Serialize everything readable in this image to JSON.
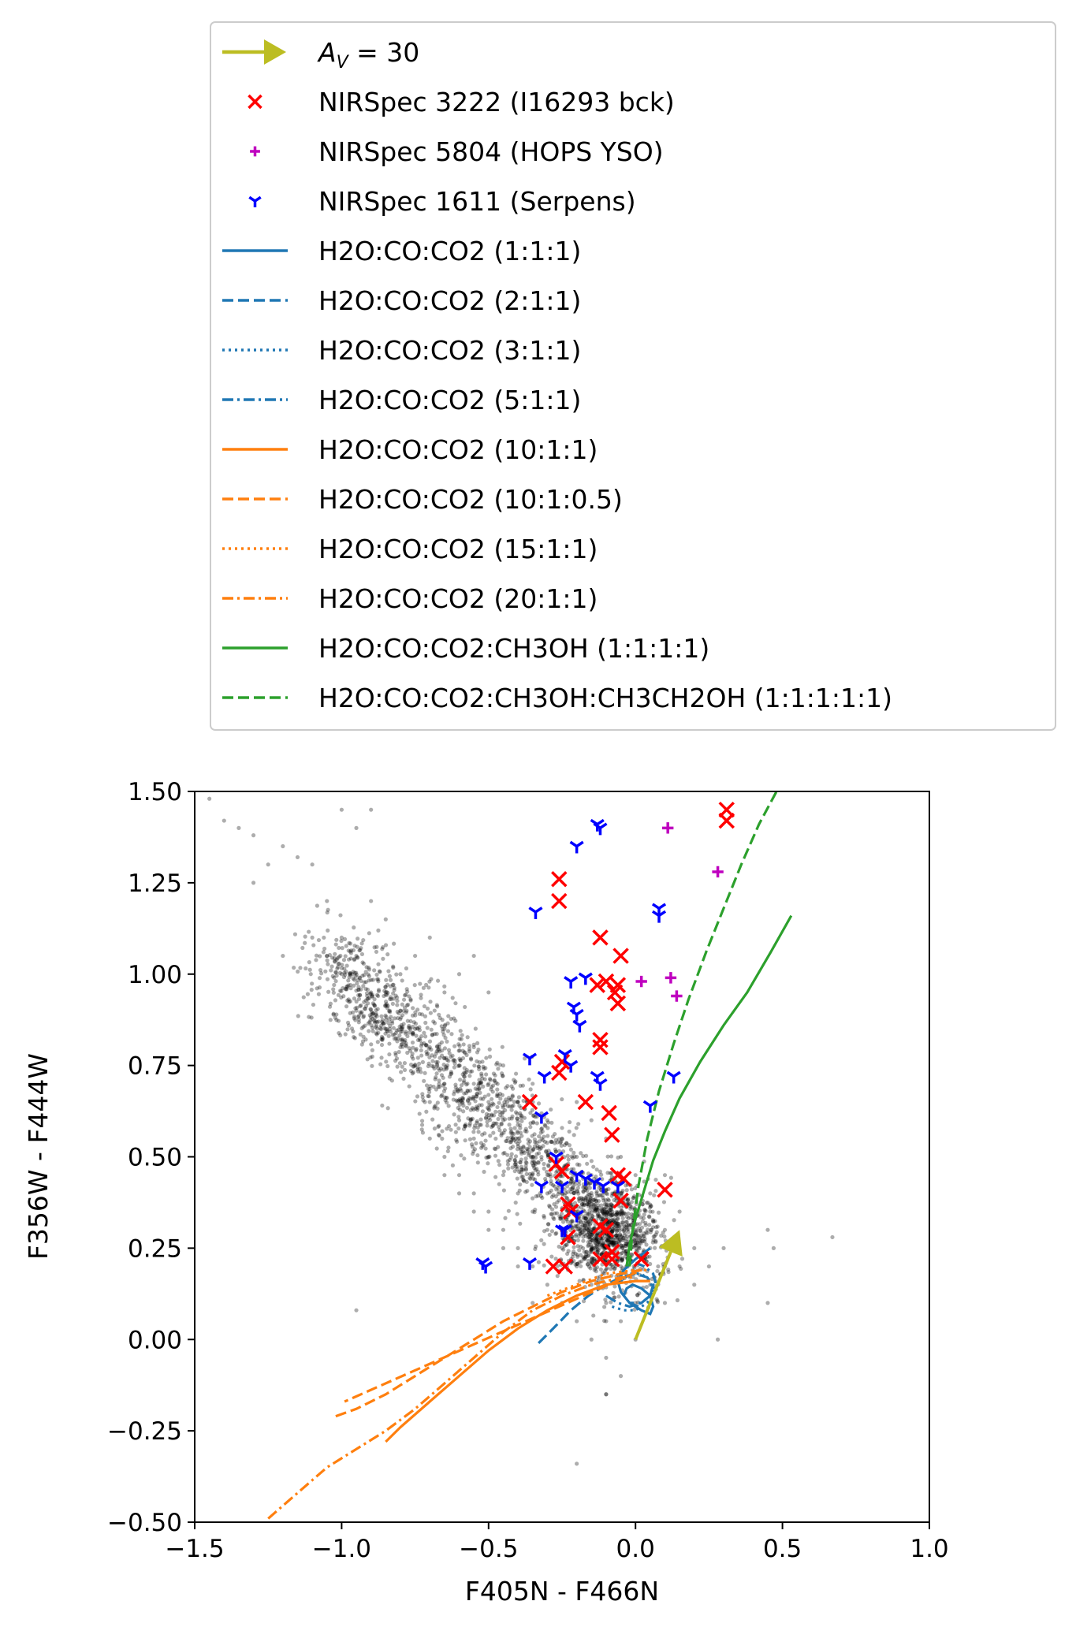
{
  "chart_data": {
    "type": "scatter",
    "xlabel": "F405N - F466N",
    "ylabel": "F356W - F444W",
    "xlim": [
      -1.5,
      1.0
    ],
    "ylim": [
      -0.5,
      1.5
    ],
    "xticks": [
      "−1.5",
      "−1.0",
      "−0.5",
      "0.0",
      "0.5",
      "1.0"
    ],
    "xtick_values": [
      -1.5,
      -1.0,
      -0.5,
      0.0,
      0.5,
      1.0
    ],
    "yticks": [
      "−0.50",
      "−0.25",
      "0.00",
      "0.25",
      "0.50",
      "0.75",
      "1.00",
      "1.25",
      "1.50"
    ],
    "ytick_values": [
      -0.5,
      -0.25,
      0.0,
      0.25,
      0.5,
      0.75,
      1.0,
      1.25,
      1.5
    ],
    "grid": false,
    "legend_position": "above plot",
    "legend": [
      {
        "label_main": "A",
        "label_sub": "V",
        "label_rest": " = 30",
        "kind": "arrow",
        "color": "#bcbd22"
      },
      {
        "label": "NIRSpec 3222 (I16293 bck)",
        "kind": "marker",
        "marker": "x",
        "color": "#ff0000"
      },
      {
        "label": "NIRSpec 5804 (HOPS YSO)",
        "kind": "marker",
        "marker": "plus",
        "color": "#bf00bf"
      },
      {
        "label": "NIRSpec 1611 (Serpens)",
        "kind": "marker",
        "marker": "tri",
        "color": "#0000ff"
      },
      {
        "label": "H2O:CO:CO2 (1:1:1)",
        "kind": "line",
        "color": "#1f77b4",
        "dash": "solid"
      },
      {
        "label": "H2O:CO:CO2 (2:1:1)",
        "kind": "line",
        "color": "#1f77b4",
        "dash": "dashed"
      },
      {
        "label": "H2O:CO:CO2 (3:1:1)",
        "kind": "line",
        "color": "#1f77b4",
        "dash": "dotted"
      },
      {
        "label": "H2O:CO:CO2 (5:1:1)",
        "kind": "line",
        "color": "#1f77b4",
        "dash": "dashdot"
      },
      {
        "label": "H2O:CO:CO2 (10:1:1)",
        "kind": "line",
        "color": "#ff7f0e",
        "dash": "solid"
      },
      {
        "label": "H2O:CO:CO2 (10:1:0.5)",
        "kind": "line",
        "color": "#ff7f0e",
        "dash": "dashed"
      },
      {
        "label": "H2O:CO:CO2 (15:1:1)",
        "kind": "line",
        "color": "#ff7f0e",
        "dash": "dotted"
      },
      {
        "label": "H2O:CO:CO2 (20:1:1)",
        "kind": "line",
        "color": "#ff7f0e",
        "dash": "dashdot"
      },
      {
        "label": "H2O:CO:CO2:CH3OH (1:1:1:1)",
        "kind": "line",
        "color": "#2ca02c",
        "dash": "solid"
      },
      {
        "label": "H2O:CO:CO2:CH3OH:CH3CH2OH (1:1:1:1:1)",
        "kind": "line",
        "color": "#2ca02c",
        "dash": "dashed"
      }
    ],
    "arrow": {
      "from": [
        0.0,
        0.0
      ],
      "to": [
        0.15,
        0.3
      ],
      "color": "#bcbd22"
    },
    "background_cloud": {
      "color": "#000000",
      "description_points": "dense grey scatter, main trend",
      "sample": [
        [
          -1.45,
          1.48
        ],
        [
          -1.4,
          1.42
        ],
        [
          -1.35,
          1.4
        ],
        [
          -1.3,
          1.38
        ],
        [
          -1.25,
          1.3
        ],
        [
          -1.2,
          1.35
        ],
        [
          -1.15,
          1.32
        ],
        [
          -1.1,
          1.3
        ],
        [
          -1.0,
          1.45
        ],
        [
          -0.95,
          1.4
        ],
        [
          -0.9,
          1.45
        ],
        [
          -1.05,
          1.2
        ],
        [
          -1.1,
          1.1
        ],
        [
          -1.2,
          1.05
        ],
        [
          -1.3,
          1.25
        ],
        [
          -1.0,
          1.1
        ],
        [
          -0.9,
          1.2
        ],
        [
          -0.95,
          1.05
        ],
        [
          -0.85,
          1.15
        ],
        [
          -0.8,
          1.0
        ],
        [
          -0.75,
          1.05
        ],
        [
          -0.7,
          1.1
        ],
        [
          -0.65,
          0.95
        ],
        [
          -0.6,
          1.0
        ],
        [
          -0.55,
          1.05
        ],
        [
          -0.5,
          0.95
        ],
        [
          -0.8,
          0.9
        ],
        [
          -0.75,
          0.85
        ],
        [
          -0.7,
          0.8
        ],
        [
          -0.65,
          0.85
        ],
        [
          -0.6,
          0.75
        ],
        [
          -0.55,
          0.8
        ],
        [
          -0.5,
          0.7
        ],
        [
          -0.45,
          0.75
        ],
        [
          -0.4,
          0.65
        ],
        [
          -0.35,
          0.7
        ],
        [
          -0.3,
          0.6
        ],
        [
          -0.25,
          0.55
        ],
        [
          -0.2,
          0.5
        ],
        [
          -0.15,
          0.45
        ],
        [
          -0.1,
          0.4
        ],
        [
          -0.05,
          0.35
        ],
        [
          0.0,
          0.3
        ],
        [
          0.05,
          0.25
        ],
        [
          0.1,
          0.2
        ],
        [
          0.15,
          0.2
        ],
        [
          0.2,
          0.25
        ],
        [
          0.25,
          0.2
        ],
        [
          0.3,
          0.25
        ],
        [
          -0.6,
          0.6
        ],
        [
          -0.55,
          0.55
        ],
        [
          -0.5,
          0.5
        ],
        [
          -0.45,
          0.45
        ],
        [
          -0.4,
          0.4
        ],
        [
          -0.35,
          0.35
        ],
        [
          -0.3,
          0.3
        ],
        [
          -0.25,
          0.25
        ],
        [
          -0.2,
          0.2
        ],
        [
          -0.15,
          0.15
        ],
        [
          -0.1,
          0.1
        ],
        [
          -0.05,
          0.05
        ],
        [
          0.0,
          0.0
        ],
        [
          -0.1,
          -0.05
        ],
        [
          -0.05,
          -0.1
        ],
        [
          -0.1,
          -0.15
        ],
        [
          -0.7,
          0.55
        ],
        [
          -0.65,
          0.5
        ],
        [
          -0.6,
          0.45
        ],
        [
          -0.55,
          0.4
        ],
        [
          -0.5,
          0.35
        ],
        [
          -0.45,
          0.3
        ],
        [
          -0.4,
          0.25
        ],
        [
          -0.35,
          0.2
        ],
        [
          0.45,
          0.3
        ],
        [
          0.47,
          0.25
        ],
        [
          0.67,
          0.28
        ],
        [
          0.45,
          0.1
        ],
        [
          0.28,
          0.0
        ],
        [
          -0.95,
          0.08
        ],
        [
          -0.2,
          -0.34
        ],
        [
          -0.1,
          -0.15
        ],
        [
          -0.3,
          0.45
        ],
        [
          -0.25,
          0.4
        ],
        [
          -0.2,
          0.35
        ],
        [
          -0.15,
          0.3
        ],
        [
          -0.1,
          0.25
        ],
        [
          -0.05,
          0.2
        ],
        [
          0.05,
          0.35
        ],
        [
          0.1,
          0.3
        ],
        [
          -0.2,
          0.65
        ],
        [
          -0.15,
          0.6
        ],
        [
          -0.1,
          0.55
        ],
        [
          -0.05,
          0.5
        ],
        [
          0.0,
          0.45
        ],
        [
          0.05,
          0.4
        ],
        [
          0.1,
          0.45
        ],
        [
          0.15,
          0.35
        ],
        [
          -0.4,
          0.55
        ],
        [
          -0.35,
          0.5
        ],
        [
          -0.3,
          0.4
        ],
        [
          -0.45,
          0.6
        ],
        [
          -0.5,
          0.65
        ],
        [
          -0.55,
          0.7
        ],
        [
          -0.65,
          0.7
        ],
        [
          -0.7,
          0.65
        ],
        [
          -0.75,
          0.75
        ],
        [
          -0.8,
          0.8
        ],
        [
          -0.85,
          0.85
        ],
        [
          -0.9,
          0.95
        ],
        [
          -0.95,
          0.9
        ],
        [
          -1.0,
          1.0
        ],
        [
          -1.05,
          1.05
        ],
        [
          -0.85,
          0.95
        ],
        [
          -0.25,
          0.1
        ],
        [
          -0.2,
          0.05
        ],
        [
          -0.15,
          0.0
        ],
        [
          -0.1,
          0.05
        ],
        [
          0.0,
          0.1
        ],
        [
          0.05,
          0.15
        ],
        [
          0.1,
          0.1
        ],
        [
          0.2,
          0.15
        ],
        [
          -0.35,
          0.1
        ],
        [
          -0.3,
          0.15
        ],
        [
          -0.4,
          0.2
        ],
        [
          -0.45,
          0.25
        ],
        [
          -0.5,
          0.3
        ],
        [
          -0.55,
          0.35
        ],
        [
          -0.6,
          0.4
        ],
        [
          -0.65,
          0.45
        ]
      ]
    },
    "series_markers": [
      {
        "name": "NIRSpec 3222 (I16293 bck)",
        "marker": "x",
        "color": "#ff0000",
        "points": [
          [
            0.31,
            1.45
          ],
          [
            0.31,
            1.42
          ],
          [
            -0.26,
            1.26
          ],
          [
            -0.26,
            1.2
          ],
          [
            -0.12,
            1.1
          ],
          [
            -0.05,
            1.05
          ],
          [
            -0.13,
            0.97
          ],
          [
            -0.1,
            0.98
          ],
          [
            -0.06,
            0.97
          ],
          [
            -0.07,
            0.95
          ],
          [
            -0.06,
            0.92
          ],
          [
            -0.12,
            0.82
          ],
          [
            -0.12,
            0.8
          ],
          [
            -0.25,
            0.76
          ],
          [
            -0.26,
            0.73
          ],
          [
            -0.36,
            0.65
          ],
          [
            -0.17,
            0.65
          ],
          [
            -0.09,
            0.62
          ],
          [
            -0.08,
            0.56
          ],
          [
            -0.27,
            0.48
          ],
          [
            -0.25,
            0.46
          ],
          [
            -0.06,
            0.45
          ],
          [
            -0.04,
            0.44
          ],
          [
            0.1,
            0.41
          ],
          [
            -0.23,
            0.37
          ],
          [
            -0.22,
            0.35
          ],
          [
            -0.12,
            0.31
          ],
          [
            -0.23,
            0.28
          ],
          [
            -0.1,
            0.3
          ],
          [
            -0.28,
            0.2
          ],
          [
            -0.24,
            0.2
          ],
          [
            -0.12,
            0.22
          ],
          [
            -0.08,
            0.22
          ],
          [
            -0.08,
            0.24
          ],
          [
            0.02,
            0.22
          ],
          [
            -0.05,
            0.38
          ]
        ]
      },
      {
        "name": "NIRSpec 5804 (HOPS YSO)",
        "marker": "plus",
        "color": "#bf00bf",
        "points": [
          [
            0.11,
            1.4
          ],
          [
            0.28,
            1.28
          ],
          [
            0.02,
            0.98
          ],
          [
            0.12,
            0.99
          ],
          [
            0.14,
            0.94
          ]
        ]
      },
      {
        "name": "NIRSpec 1611 (Serpens)",
        "marker": "tri",
        "color": "#0000ff",
        "points": [
          [
            -0.13,
            1.41
          ],
          [
            -0.12,
            1.4
          ],
          [
            -0.2,
            1.35
          ],
          [
            -0.34,
            1.17
          ],
          [
            0.08,
            1.18
          ],
          [
            0.08,
            1.16
          ],
          [
            -0.22,
            0.98
          ],
          [
            -0.17,
            0.99
          ],
          [
            -0.21,
            0.91
          ],
          [
            -0.2,
            0.89
          ],
          [
            -0.19,
            0.86
          ],
          [
            -0.36,
            0.77
          ],
          [
            -0.24,
            0.78
          ],
          [
            -0.22,
            0.75
          ],
          [
            -0.31,
            0.72
          ],
          [
            -0.13,
            0.72
          ],
          [
            -0.12,
            0.7
          ],
          [
            0.13,
            0.72
          ],
          [
            0.05,
            0.64
          ],
          [
            -0.32,
            0.61
          ],
          [
            -0.27,
            0.5
          ],
          [
            -0.2,
            0.45
          ],
          [
            -0.14,
            0.43
          ],
          [
            -0.11,
            0.42
          ],
          [
            -0.06,
            0.42
          ],
          [
            -0.32,
            0.42
          ],
          [
            -0.25,
            0.42
          ],
          [
            -0.2,
            0.34
          ],
          [
            -0.24,
            0.3
          ],
          [
            -0.52,
            0.21
          ],
          [
            -0.51,
            0.2
          ],
          [
            -0.36,
            0.21
          ],
          [
            -0.25,
            0.3
          ],
          [
            -0.17,
            0.44
          ]
        ]
      }
    ],
    "series_lines": [
      {
        "name": "H2O:CO:CO2 (1:1:1)",
        "color": "#1f77b4",
        "dash": "solid",
        "x": [
          0.05,
          0.0,
          -0.04,
          -0.06,
          -0.05,
          -0.02,
          0.02,
          0.05,
          0.06,
          0.05,
          0.02,
          -0.01,
          -0.03,
          -0.04,
          -0.02,
          0.01
        ],
        "y": [
          0.25,
          0.22,
          0.19,
          0.16,
          0.13,
          0.1,
          0.08,
          0.07,
          0.09,
          0.12,
          0.14,
          0.15,
          0.14,
          0.12,
          0.1,
          0.09
        ]
      },
      {
        "name": "H2O:CO:CO2 (2:1:1)",
        "color": "#1f77b4",
        "dash": "dashed",
        "x": [
          -0.33,
          -0.28,
          -0.22,
          -0.16,
          -0.1,
          -0.05,
          0.0,
          0.04,
          0.06,
          0.05,
          0.02,
          -0.02
        ],
        "y": [
          -0.01,
          0.03,
          0.08,
          0.12,
          0.15,
          0.17,
          0.18,
          0.17,
          0.15,
          0.12,
          0.1,
          0.1
        ]
      },
      {
        "name": "H2O:CO:CO2 (3:1:1)",
        "color": "#1f77b4",
        "dash": "dotted",
        "x": [
          -0.08,
          -0.04,
          0.0,
          0.04,
          0.06,
          0.05,
          0.02,
          -0.02,
          -0.05
        ],
        "y": [
          0.09,
          0.08,
          0.08,
          0.1,
          0.13,
          0.16,
          0.18,
          0.18,
          0.16
        ]
      },
      {
        "name": "H2O:CO:CO2 (5:1:1)",
        "color": "#1f77b4",
        "dash": "dashdot",
        "x": [
          -0.1,
          -0.06,
          -0.02,
          0.02,
          0.05,
          0.07,
          0.06,
          0.03,
          0.0
        ],
        "y": [
          0.12,
          0.1,
          0.09,
          0.1,
          0.12,
          0.15,
          0.18,
          0.2,
          0.21
        ]
      },
      {
        "name": "H2O:CO:CO2 (10:1:1)",
        "color": "#ff7f0e",
        "dash": "solid",
        "x": [
          -0.85,
          -0.8,
          -0.7,
          -0.6,
          -0.5,
          -0.4,
          -0.3,
          -0.2,
          -0.1,
          0.0,
          0.05
        ],
        "y": [
          -0.28,
          -0.24,
          -0.17,
          -0.1,
          -0.03,
          0.03,
          0.08,
          0.12,
          0.15,
          0.16,
          0.16
        ]
      },
      {
        "name": "H2O:CO:CO2 (10:1:0.5)",
        "color": "#ff7f0e",
        "dash": "dashed",
        "x": [
          -1.02,
          -0.95,
          -0.85,
          -0.75,
          -0.65,
          -0.55,
          -0.45,
          -0.35,
          -0.25,
          -0.15,
          -0.05,
          0.02,
          -0.99
        ],
        "y": [
          -0.21,
          -0.19,
          -0.15,
          -0.1,
          -0.05,
          0.0,
          0.05,
          0.09,
          0.13,
          0.16,
          0.18,
          0.19,
          -0.17
        ]
      },
      {
        "name": "H2O:CO:CO2 (15:1:1)",
        "color": "#ff7f0e",
        "dash": "dotted",
        "x": [
          -0.3,
          -0.2,
          -0.1,
          0.0,
          0.05
        ],
        "y": [
          0.12,
          0.15,
          0.18,
          0.19,
          0.19
        ]
      },
      {
        "name": "H2O:CO:CO2 (20:1:1)",
        "color": "#ff7f0e",
        "dash": "dashdot",
        "x": [
          -1.25,
          -1.15,
          -1.05,
          -0.95,
          -0.85,
          -0.75,
          -0.65,
          -0.55,
          -0.45,
          -0.35,
          -0.25,
          -0.15,
          -0.05,
          0.0
        ],
        "y": [
          -0.49,
          -0.42,
          -0.35,
          -0.3,
          -0.25,
          -0.19,
          -0.12,
          -0.05,
          0.02,
          0.08,
          0.12,
          0.15,
          0.17,
          0.17
        ]
      },
      {
        "name": "H2O:CO:CO2:CH3OH (1:1:1:1)",
        "color": "#2ca02c",
        "dash": "solid",
        "x": [
          -0.03,
          -0.02,
          0.0,
          0.03,
          0.06,
          0.1,
          0.15,
          0.22,
          0.3,
          0.38,
          0.46,
          0.53
        ],
        "y": [
          0.2,
          0.26,
          0.33,
          0.41,
          0.49,
          0.57,
          0.66,
          0.76,
          0.86,
          0.95,
          1.06,
          1.16
        ]
      },
      {
        "name": "H2O:CO:CO2:CH3OH:CH3CH2OH (1:1:1:1:1)",
        "color": "#2ca02c",
        "dash": "dashed",
        "x": [
          -0.02,
          -0.01,
          0.01,
          0.04,
          0.08,
          0.13,
          0.18,
          0.24,
          0.3,
          0.36,
          0.42,
          0.48
        ],
        "y": [
          0.2,
          0.3,
          0.42,
          0.55,
          0.68,
          0.81,
          0.93,
          1.06,
          1.18,
          1.3,
          1.41,
          1.5
        ]
      }
    ]
  }
}
